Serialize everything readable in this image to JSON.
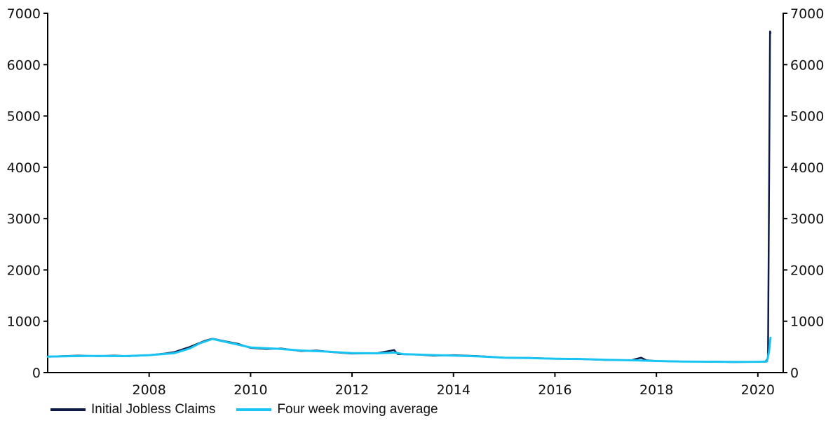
{
  "colors": {
    "claims": "#0d1a45",
    "average": "#18c5f2",
    "axis": "#000000"
  },
  "chart_data": {
    "type": "line",
    "title": "",
    "xlabel": "",
    "ylabel": "",
    "xlim": [
      2006.0,
      2020.5
    ],
    "ylim": [
      0,
      7000
    ],
    "yticks": [
      "0",
      "1000",
      "2000",
      "3000",
      "4000",
      "5000",
      "6000",
      "7000"
    ],
    "xticks": [
      "2008",
      "2010",
      "2012",
      "2014",
      "2016",
      "2018",
      "2020"
    ],
    "grid": false,
    "legend_position": "bottom-left",
    "series": [
      {
        "name": "Initial Jobless Claims",
        "x": [
          2006.0,
          2006.3,
          2006.6,
          2007.0,
          2007.3,
          2007.6,
          2008.0,
          2008.3,
          2008.5,
          2008.8,
          2009.0,
          2009.1,
          2009.25,
          2009.5,
          2009.75,
          2010.0,
          2010.3,
          2010.6,
          2011.0,
          2011.3,
          2011.6,
          2012.0,
          2012.5,
          2012.83,
          2012.9,
          2013.3,
          2013.6,
          2014.0,
          2014.5,
          2015.0,
          2015.5,
          2016.0,
          2016.5,
          2017.0,
          2017.5,
          2017.7,
          2017.8,
          2018.0,
          2018.5,
          2019.0,
          2019.5,
          2020.0,
          2020.15,
          2020.2,
          2020.22,
          2020.24,
          2020.25
        ],
        "y": [
          310,
          320,
          330,
          320,
          330,
          320,
          340,
          370,
          400,
          500,
          580,
          620,
          660,
          610,
          560,
          480,
          460,
          470,
          420,
          430,
          400,
          370,
          380,
          440,
          360,
          350,
          330,
          340,
          320,
          290,
          285,
          270,
          265,
          245,
          240,
          290,
          240,
          225,
          215,
          215,
          205,
          210,
          211,
          281,
          3307,
          6648,
          6616
        ]
      },
      {
        "name": "Four week moving average",
        "x": [
          2006.0,
          2006.5,
          2007.0,
          2007.5,
          2008.0,
          2008.5,
          2008.8,
          2009.0,
          2009.25,
          2009.5,
          2010.0,
          2010.5,
          2011.0,
          2011.5,
          2012.0,
          2012.5,
          2012.85,
          2013.0,
          2013.5,
          2014.0,
          2014.5,
          2015.0,
          2015.5,
          2016.0,
          2016.5,
          2017.0,
          2017.5,
          2018.0,
          2018.5,
          2019.0,
          2019.5,
          2020.0,
          2020.18,
          2020.22,
          2020.25
        ],
        "y": [
          310,
          320,
          325,
          320,
          340,
          380,
          470,
          570,
          655,
          600,
          490,
          465,
          430,
          410,
          380,
          375,
          390,
          360,
          345,
          330,
          315,
          290,
          283,
          270,
          265,
          248,
          240,
          225,
          215,
          212,
          208,
          210,
          215,
          400,
          680
        ]
      }
    ]
  }
}
